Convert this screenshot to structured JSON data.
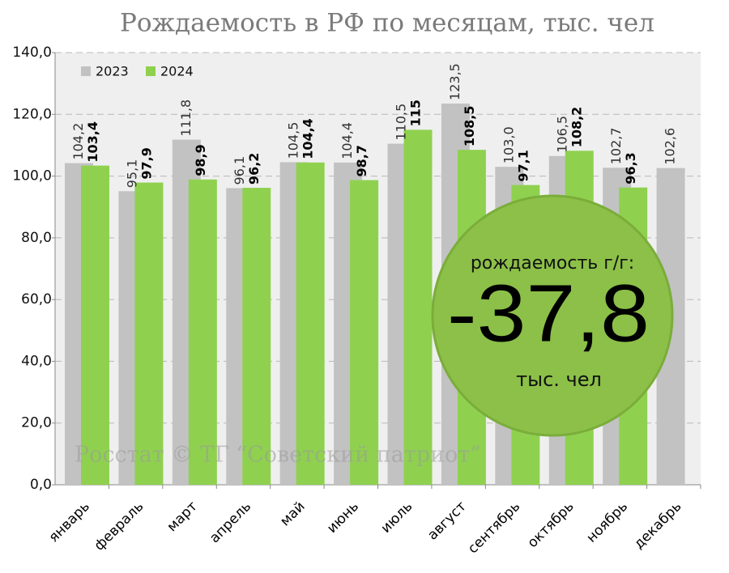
{
  "chart_data": {
    "type": "bar",
    "title": "Рождаемость в РФ по месяцам, тыс. чел",
    "categories": [
      "январь",
      "февраль",
      "март",
      "апрель",
      "май",
      "июнь",
      "июль",
      "август",
      "сентябрь",
      "октябрь",
      "ноябрь",
      "декабрь"
    ],
    "series": [
      {
        "name": "2023",
        "color": "#c2c2c2",
        "values": [
          104.2,
          95.1,
          111.8,
          96.1,
          104.5,
          104.4,
          110.5,
          123.5,
          103.0,
          106.5,
          102.7,
          102.6
        ],
        "value_labels": [
          "104,2",
          "95,1",
          "111,8",
          "96,1",
          "104,5",
          "104,4",
          "110,5",
          "123,5",
          "103,0",
          "106,5",
          "102,7",
          "102,6"
        ]
      },
      {
        "name": "2024",
        "color": "#8fd14f",
        "values": [
          103.4,
          97.9,
          98.9,
          96.2,
          104.4,
          98.7,
          115,
          108.5,
          97.1,
          108.2,
          96.3,
          null
        ],
        "value_labels": [
          "103,4",
          "97,9",
          "98,9",
          "96,2",
          "104,4",
          "98,7",
          "115",
          "108,5",
          "97,1",
          "108,2",
          "96,3",
          null
        ]
      }
    ],
    "ylim": [
      0,
      140
    ],
    "yticks": [
      {
        "value": 0,
        "label": "0,0"
      },
      {
        "value": 20,
        "label": "20,0"
      },
      {
        "value": 40,
        "label": "40,0"
      },
      {
        "value": 60,
        "label": "60,0"
      },
      {
        "value": 80,
        "label": "80,0"
      },
      {
        "value": 100,
        "label": "100,0"
      },
      {
        "value": 120,
        "label": "120,0"
      },
      {
        "value": 140,
        "label": "140,0"
      }
    ],
    "grid": true,
    "source": "Росстат © ТГ “Советский патриот”",
    "annotation": {
      "caption": "рождаемость г/г:",
      "value": "-37,8",
      "unit": "тыс. чел"
    }
  }
}
